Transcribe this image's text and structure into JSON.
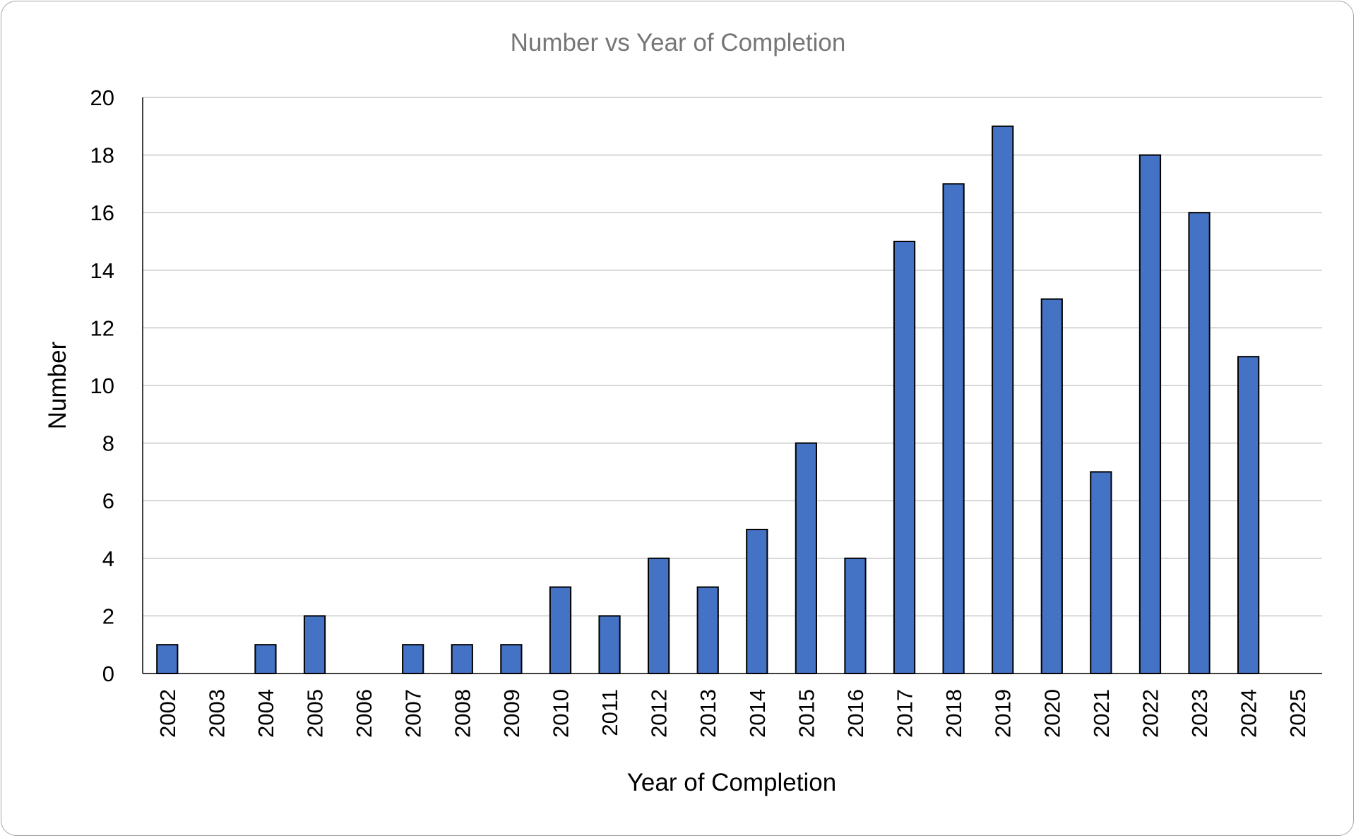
{
  "chart_data": {
    "type": "bar",
    "title": "Number vs Year of Completion",
    "xlabel": "Year of Completion",
    "ylabel": "Number",
    "categories": [
      "2002",
      "2003",
      "2004",
      "2005",
      "2006",
      "2007",
      "2008",
      "2009",
      "2010",
      "2011",
      "2012",
      "2013",
      "2014",
      "2015",
      "2016",
      "2017",
      "2018",
      "2019",
      "2020",
      "2021",
      "2022",
      "2023",
      "2024",
      "2025"
    ],
    "values": [
      1,
      0,
      1,
      2,
      0,
      1,
      1,
      1,
      3,
      2,
      4,
      3,
      5,
      8,
      4,
      15,
      17,
      19,
      13,
      7,
      18,
      16,
      11,
      0
    ],
    "ylim": [
      0,
      20
    ],
    "yticks": [
      "0",
      "2",
      "4",
      "6",
      "8",
      "10",
      "12",
      "14",
      "16",
      "18",
      "20"
    ],
    "grid": true,
    "legend": "none",
    "colors": {
      "bar_fill": "#4472c4",
      "bar_stroke": "#000000",
      "grid": "#c8c8c8",
      "title": "#767676"
    }
  }
}
